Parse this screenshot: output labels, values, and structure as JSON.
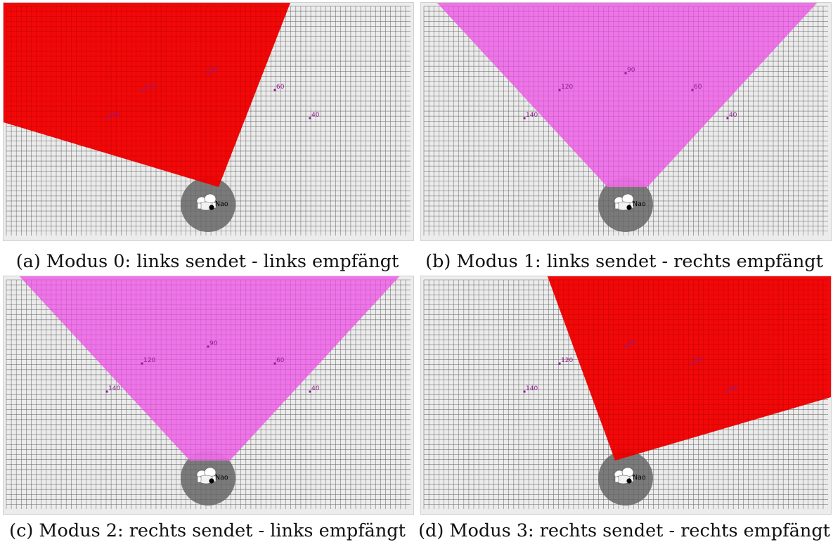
{
  "panels": [
    {
      "id": "a",
      "caption": "(a) Modus 0: links sendet - links empfängt",
      "beam_type": "links-links",
      "beam_color": "#f20000",
      "beam_opacity": 0.97
    },
    {
      "id": "b",
      "caption": "(b) Modus 1: links sendet - rechts empfängt",
      "beam_type": "cross",
      "beam_color": "#ee6ee8",
      "beam_opacity": 0.95
    },
    {
      "id": "c",
      "caption": "(c) Modus 2: rechts sendet - links empfängt",
      "beam_type": "cross",
      "beam_color": "#ee6ee8",
      "beam_opacity": 0.95
    },
    {
      "id": "d",
      "caption": "(d) Modus 3: rechts sendet - rechts empfängt",
      "beam_type": "rechts-rechts",
      "beam_color": "#f20000",
      "beam_opacity": 0.97
    }
  ],
  "markers": [
    {
      "label": "140"
    },
    {
      "label": "120"
    },
    {
      "label": "90"
    },
    {
      "label": "60"
    },
    {
      "label": "40"
    }
  ],
  "robot_label": "Nao",
  "colors": {
    "grid_background": "#ececec",
    "grid_line": "#8f8f8f",
    "marker": "#8e1a8e",
    "robot_disc": "#7a7a7a"
  }
}
